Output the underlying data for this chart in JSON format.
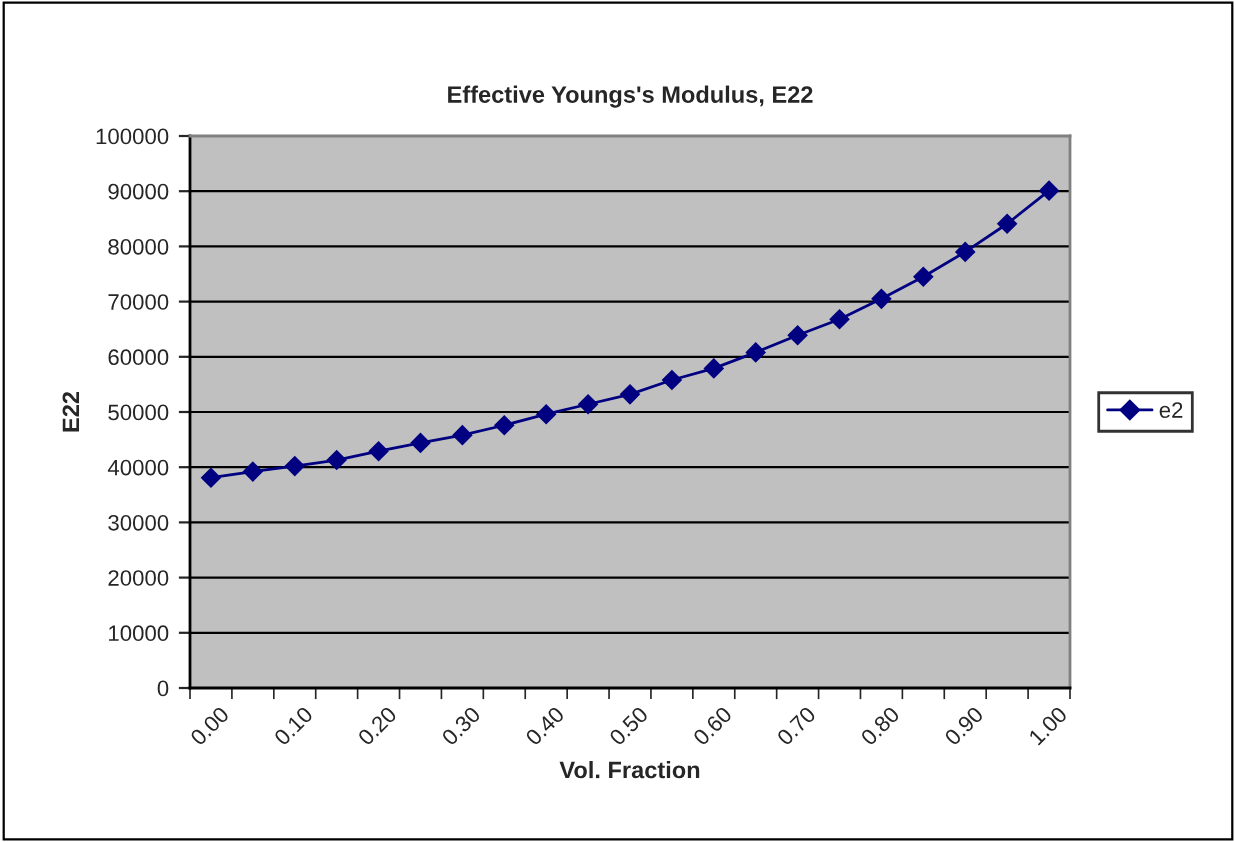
{
  "chart_data": {
    "type": "line",
    "title": "Effective Youngs's Modulus, E22",
    "xlabel": "Vol. Fraction",
    "ylabel": "E22",
    "categories": [
      "0.00",
      null,
      "0.10",
      null,
      "0.20",
      null,
      "0.30",
      null,
      "0.40",
      null,
      "0.50",
      null,
      "0.60",
      null,
      "0.70",
      null,
      "0.80",
      null,
      "0.90",
      null,
      "1.00"
    ],
    "series": [
      {
        "name": "e2",
        "color": "#000080",
        "values": [
          38100,
          39200,
          40200,
          41300,
          42900,
          44400,
          45800,
          47600,
          49600,
          51400,
          53200,
          55800,
          57900,
          60800,
          63900,
          66800,
          70500,
          74500,
          79000,
          84100,
          90100
        ]
      }
    ],
    "ylim": [
      0,
      100000
    ],
    "yticks": [
      0,
      10000,
      20000,
      30000,
      40000,
      50000,
      60000,
      70000,
      80000,
      90000,
      100000
    ],
    "grid": "y",
    "legend": "right",
    "marker": "diamond",
    "line_style": "solid"
  }
}
